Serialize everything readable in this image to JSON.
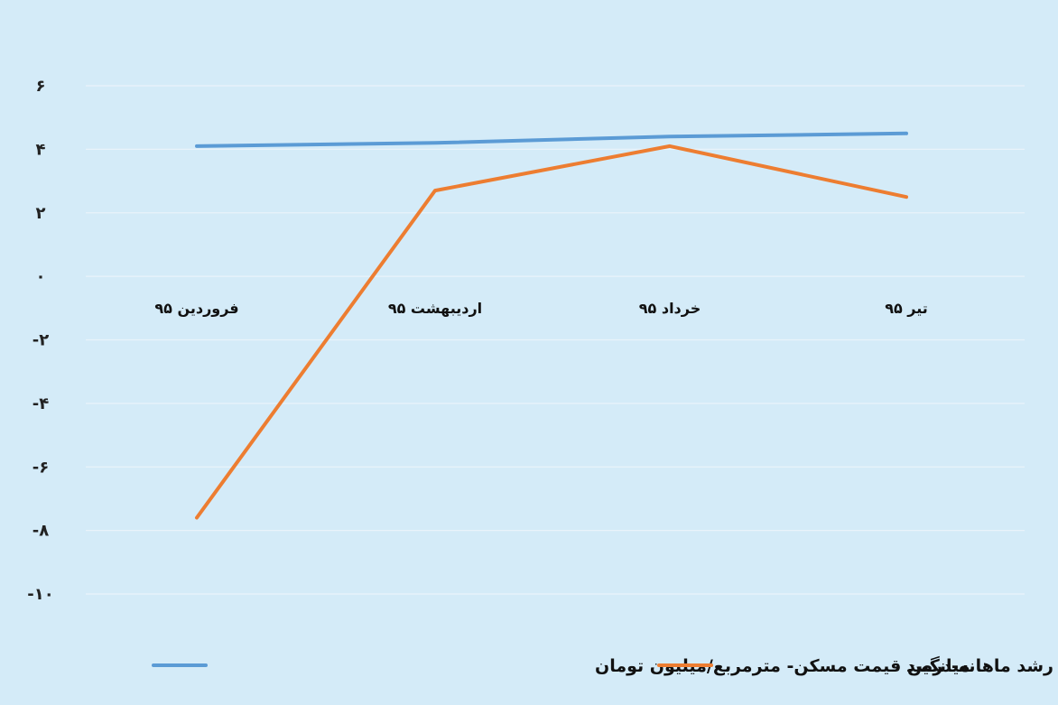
{
  "chart_data": {
    "type": "line",
    "categories": [
      "فروردین ۹۵",
      "اردیبهشت ۹۵",
      "خرداد ۹۵",
      "تیر ۹۵"
    ],
    "series": [
      {
        "name": "میانگین قیمت مسکن- مترمربع/میلیون تومان",
        "color": "#5b9bd5",
        "values": [
          4.1,
          4.2,
          4.4,
          4.5
        ]
      },
      {
        "name": "نرخ رشد ماهانه-درصد",
        "color": "#ed7d31",
        "values": [
          -7.6,
          2.7,
          4.1,
          2.5
        ]
      }
    ],
    "y_tick_values": [
      6,
      4,
      2,
      0,
      -2,
      -4,
      -6,
      -8,
      -10
    ],
    "y_tick_labels": [
      "۶",
      "۴",
      "۲",
      "۰",
      "-۲",
      "-۴",
      "-۶",
      "-۸",
      "-۱۰"
    ],
    "ylim": [
      -10,
      6
    ],
    "grid": true,
    "legend": "bottom"
  }
}
